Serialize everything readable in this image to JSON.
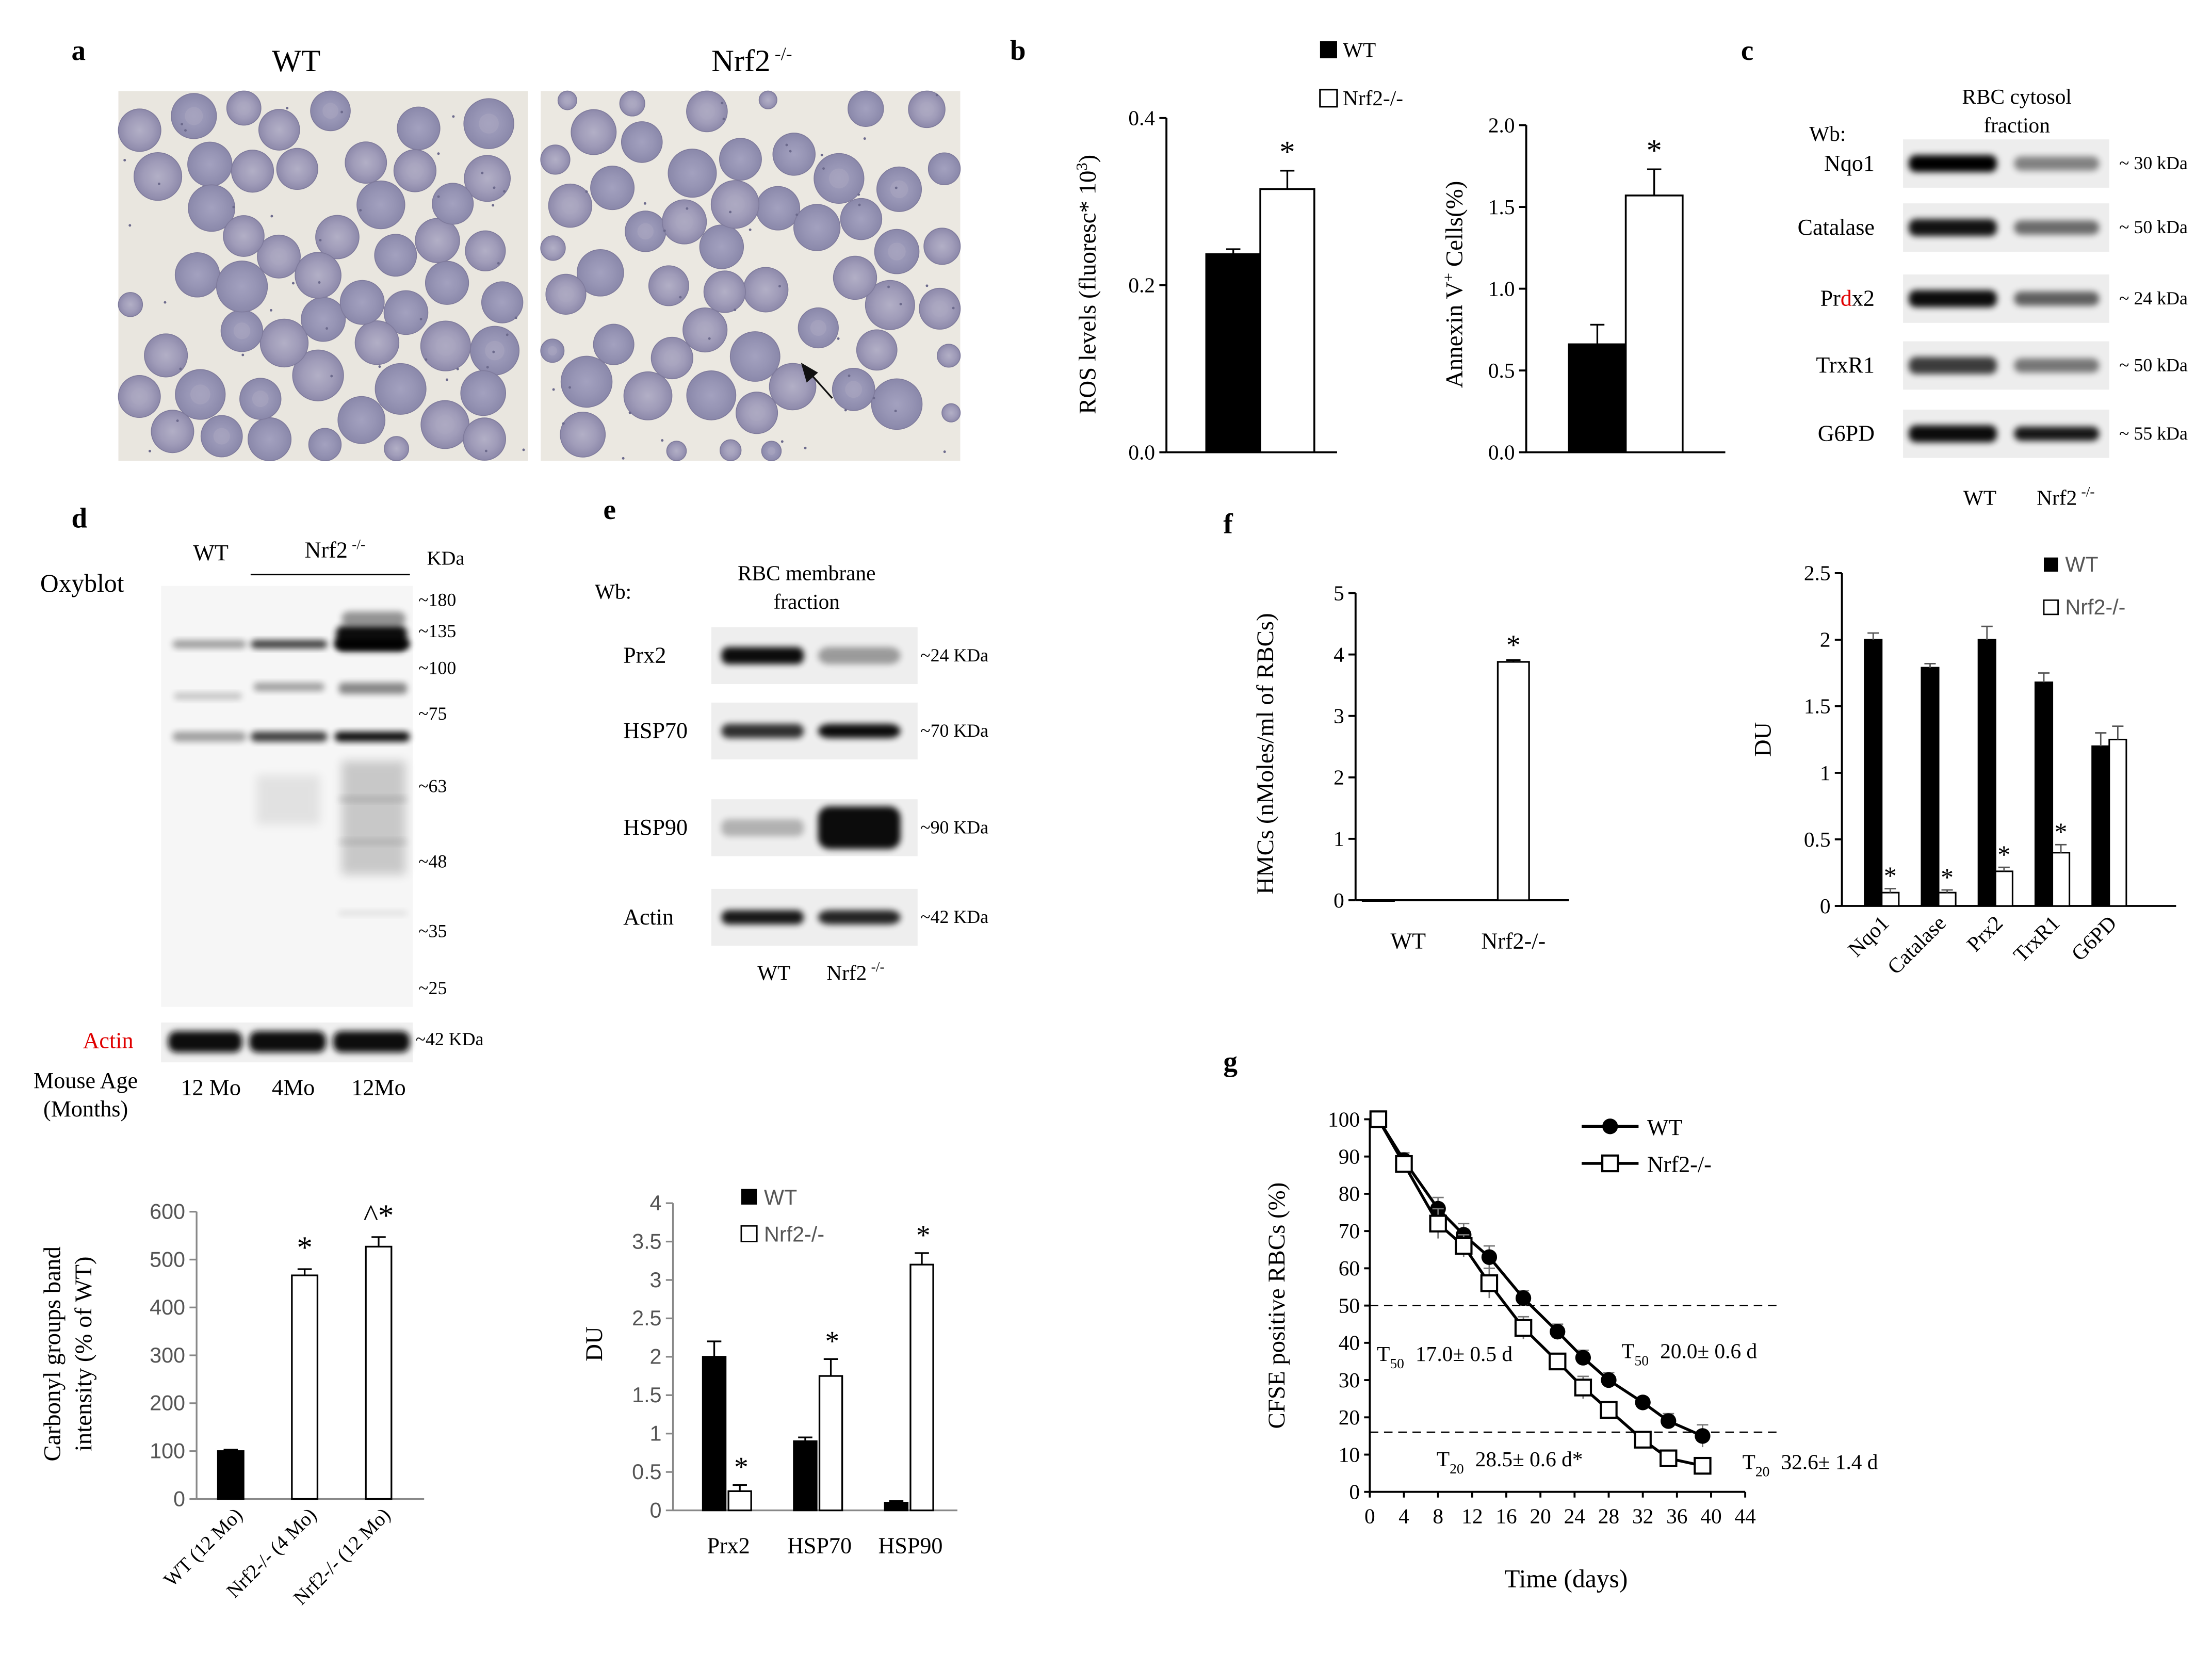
{
  "panels": {
    "a": {
      "letter": "a",
      "title_wt": "WT",
      "title_ko": "Nrf2",
      "title_ko_sup": "-/-"
    },
    "c": {
      "letter": "c",
      "header_line1": "RBC cytosol",
      "header_line2": "fraction",
      "wb_label": "Wb:",
      "proteins": [
        {
          "name": "Nqo1",
          "kda": "~ 30 kDa"
        },
        {
          "name": "Catalase",
          "kda": "~ 50 kDa"
        },
        {
          "name_pre": "Pr",
          "name_red": "d",
          "name_post": "x2",
          "kda": "~ 24 kDa"
        },
        {
          "name": "TrxR1",
          "kda": "~ 50 kDa"
        },
        {
          "name": "G6PD",
          "kda": "~ 55 kDa"
        }
      ],
      "lane_wt": "WT",
      "lane_ko": "Nrf2",
      "lane_ko_sup": "-/-"
    },
    "d": {
      "letter": "d",
      "oxyblot_label": "Oxyblot",
      "lane_wt": "WT",
      "lane_ko": "Nrf2",
      "lane_ko_sup": "-/-",
      "kda_header": "KDa",
      "markers": [
        "~180",
        "~135",
        "~100",
        "~75",
        "~63",
        "~48",
        "~35",
        "~25"
      ],
      "actin_label": "Actin",
      "actin_kda": "~42 KDa",
      "age_label_line1": "Mouse Age",
      "age_label_line2": "(Months)",
      "ages": [
        "12 Mo",
        "4Mo",
        "12Mo"
      ]
    },
    "e": {
      "letter": "e",
      "wb_label": "Wb:",
      "header_line1": "RBC membrane",
      "header_line2": "fraction",
      "proteins": [
        {
          "name": "Prx2",
          "kda": "~24 KDa"
        },
        {
          "name": "HSP70",
          "kda": "~70 KDa"
        },
        {
          "name": "HSP90",
          "kda": "~90 KDa"
        },
        {
          "name": "Actin",
          "kda": "~42 KDa"
        }
      ],
      "lane_wt": "WT",
      "lane_ko": "Nrf2",
      "lane_ko_sup": "-/-"
    },
    "f": {
      "letter": "f"
    },
    "b": {
      "letter": "b"
    },
    "g": {
      "letter": "g",
      "annotations": {
        "t50_ko": "17.0± 0.5 d",
        "t50_wt": "20.0± 0.6 d",
        "t20_ko": "28.5± 0.6 d*",
        "t20_wt": "32.6± 1.4 d",
        "t50_sym": "T",
        "t50_sub": "50",
        "t20_sym": "T",
        "t20_sub": "20"
      }
    }
  },
  "chart_data": [
    {
      "id": "b_ros",
      "type": "bar",
      "categories": [
        "WT",
        "Nrf2-/-"
      ],
      "values": [
        0.237,
        0.315
      ],
      "errors": [
        0.006,
        0.022
      ],
      "significance": [
        "",
        "*"
      ],
      "ylabel": "ROS levels (fluoresc* 10",
      "ylabel_sup": "3",
      "ylabel_end": ")",
      "ylim": [
        0,
        0.4
      ],
      "yticks": [
        "0.0",
        "0.2",
        "0.4"
      ],
      "legend": [
        "WT",
        "Nrf2-/-"
      ]
    },
    {
      "id": "b_annexin",
      "type": "bar",
      "categories": [
        "WT",
        "Nrf2-/-"
      ],
      "values": [
        0.66,
        1.57
      ],
      "errors": [
        0.12,
        0.16
      ],
      "significance": [
        "",
        "*"
      ],
      "ylabel": "Annexin V",
      "ylabel_sup": "+",
      "ylabel_end": " Cells(%)",
      "ylim": [
        0,
        2.0
      ],
      "yticks": [
        "0.0",
        "0.5",
        "1.0",
        "1.5",
        "2.0"
      ]
    },
    {
      "id": "c_du",
      "type": "bar",
      "categories": [
        "Nqo1",
        "Catalase",
        "Prx2",
        "TrxR1",
        "G6PD"
      ],
      "series": [
        {
          "name": "WT",
          "values": [
            2.0,
            1.79,
            2.0,
            1.68,
            1.2
          ],
          "errors": [
            0.05,
            0.03,
            0.1,
            0.07,
            0.1
          ]
        },
        {
          "name": "Nrf2-/-",
          "values": [
            0.1,
            0.1,
            0.26,
            0.4,
            1.25
          ],
          "errors": [
            0.03,
            0.02,
            0.03,
            0.06,
            0.1
          ]
        }
      ],
      "significance": [
        "*",
        "*",
        "*",
        "*",
        ""
      ],
      "ylabel": "DU",
      "ylim": [
        0,
        2.5
      ],
      "yticks": [
        "0",
        "0.5",
        "1",
        "1.5",
        "2",
        "2.5"
      ]
    },
    {
      "id": "d_carbonyl",
      "type": "bar",
      "categories": [
        "WT (12 Mo)",
        "Nrf2-/- (4 Mo)",
        "Nrf2-/- (12 Mo)"
      ],
      "values": [
        100,
        467,
        527
      ],
      "errors": [
        3,
        13,
        20
      ],
      "significance": [
        "",
        "*",
        "^*"
      ],
      "ylabel_line1": "Carbonyl groups band",
      "ylabel_line2": "intensity (% of WT)",
      "ylim": [
        0,
        600
      ],
      "yticks": [
        "0",
        "100",
        "200",
        "300",
        "400",
        "500",
        "600"
      ]
    },
    {
      "id": "e_du",
      "type": "bar",
      "categories": [
        "Prx2",
        "HSP70",
        "HSP90"
      ],
      "series": [
        {
          "name": "WT",
          "values": [
            2.0,
            0.9,
            0.1
          ],
          "errors": [
            0.2,
            0.05,
            0.02
          ]
        },
        {
          "name": "Nrf2-/-",
          "values": [
            0.25,
            1.75,
            3.2
          ],
          "errors": [
            0.08,
            0.22,
            0.15
          ]
        }
      ],
      "significance": [
        "*",
        "*",
        "*"
      ],
      "ylabel": "DU",
      "ylim": [
        0,
        4
      ],
      "yticks": [
        "0",
        "0.5",
        "1",
        "1.5",
        "2",
        "2.5",
        "3",
        "3.5",
        "4"
      ]
    },
    {
      "id": "f_hmc",
      "type": "bar",
      "categories": [
        "WT",
        "Nrf2-/-"
      ],
      "values": [
        0,
        3.88
      ],
      "errors": [
        0,
        0.03
      ],
      "significance": [
        "",
        "*"
      ],
      "ylabel": "HMCs (nMoles/ml of RBCs)",
      "ylim": [
        0,
        5
      ],
      "yticks": [
        "0",
        "1",
        "2",
        "3",
        "4",
        "5"
      ]
    },
    {
      "id": "g_cfse",
      "type": "line",
      "series": [
        {
          "name": "WT",
          "x": [
            1,
            4,
            8,
            11,
            14,
            18,
            22,
            25,
            28,
            32,
            35,
            39
          ],
          "y": [
            100,
            89,
            76,
            69,
            63,
            52,
            43,
            36,
            30,
            24,
            19,
            15
          ],
          "errors": [
            0,
            2,
            3,
            3,
            3,
            2,
            2,
            2,
            2,
            1,
            2,
            3
          ]
        },
        {
          "name": "Nrf2-/-",
          "x": [
            1,
            4,
            8,
            11,
            14,
            18,
            22,
            25,
            28,
            32,
            35,
            39
          ],
          "y": [
            100,
            88,
            72,
            66,
            56,
            44,
            35,
            28,
            22,
            14,
            9,
            7
          ],
          "errors": [
            0,
            2,
            4,
            3,
            4,
            3,
            2,
            3,
            2,
            1,
            1,
            1
          ]
        }
      ],
      "reference_lines": [
        50,
        16
      ],
      "xlabel": "Time (days)",
      "ylabel": "CFSE positive RBCs (%)",
      "xlim": [
        0,
        44
      ],
      "ylim": [
        0,
        100
      ],
      "xticks": [
        "0",
        "4",
        "8",
        "12",
        "16",
        "20",
        "24",
        "28",
        "32",
        "36",
        "40",
        "44"
      ],
      "yticks": [
        "0",
        "10",
        "20",
        "30",
        "40",
        "50",
        "60",
        "70",
        "80",
        "90",
        "100"
      ]
    }
  ]
}
